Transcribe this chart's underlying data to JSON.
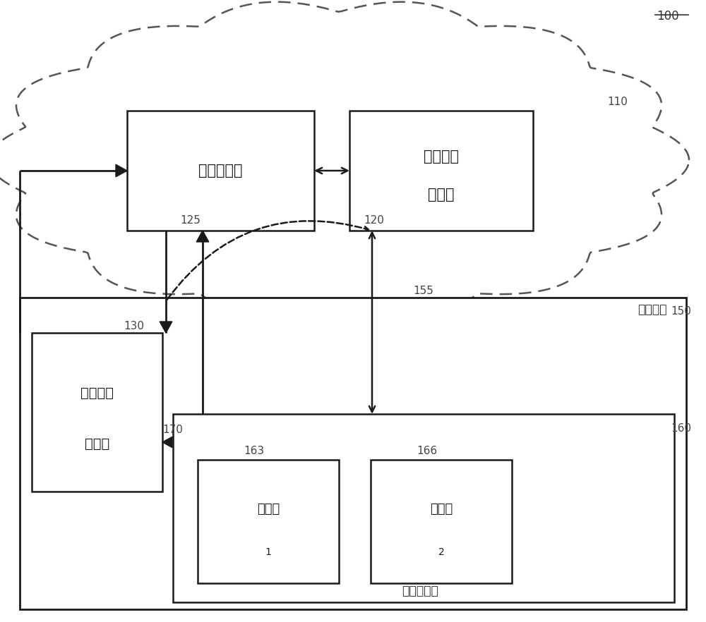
{
  "fig_width": 10.0,
  "fig_height": 8.82,
  "dpi": 100,
  "label_100": "100",
  "label_110": "110",
  "label_120": "120",
  "label_125": "125",
  "label_130": "130",
  "label_150": "150",
  "label_155": "155",
  "label_160": "160",
  "label_163": "163",
  "label_166": "166",
  "label_170": "170",
  "factory_label": "过程工厂",
  "local_control_label": "本地控制层",
  "box_125_text": "配置服务器",
  "box_120_text1": "远程监督",
  "box_120_text2": "控制器",
  "box_130_text1": "本地监督",
  "box_130_text2": "控制器",
  "box_163_text1": "控制器",
  "box_163_subscript": "1",
  "box_166_text1": "控制器",
  "box_166_subscript": "2",
  "edge_color": "#1a1a1a",
  "line_width": 1.8
}
